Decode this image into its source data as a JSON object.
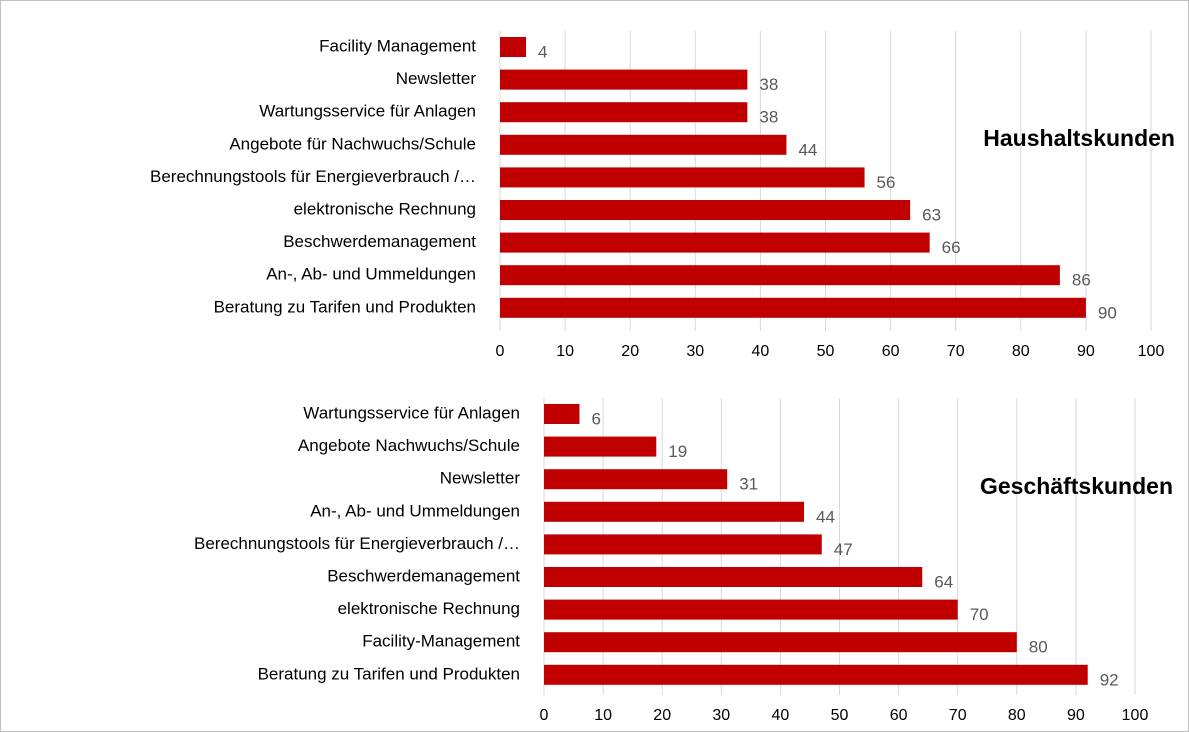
{
  "chart_data": [
    {
      "type": "bar",
      "orientation": "horizontal",
      "annotation": "Haushaltskunden",
      "color": "#c00000",
      "categories": [
        "Facility Management",
        "Newsletter",
        "Wartungsservice für Anlagen",
        "Angebote für Nachwuchs/Schule",
        "Berechnungstools für Energieverbrauch /…",
        "elektronische Rechnung",
        "Beschwerdemanagement",
        "An-, Ab- und Ummeldungen",
        "Beratung zu Tarifen und Produkten"
      ],
      "values": [
        4,
        38,
        38,
        44,
        56,
        63,
        66,
        86,
        90
      ],
      "xlim": [
        0,
        100
      ],
      "xticks": [
        0,
        10,
        20,
        30,
        40,
        50,
        60,
        70,
        80,
        90,
        100
      ],
      "grid": true
    },
    {
      "type": "bar",
      "orientation": "horizontal",
      "annotation": "Geschäftskunden",
      "color": "#c00000",
      "categories": [
        "Wartungsservice für Anlagen",
        "Angebote Nachwuchs/Schule",
        "Newsletter",
        "An-, Ab- und Ummeldungen",
        "Berechnungstools für Energieverbrauch /…",
        "Beschwerdemanagement",
        "elektronische Rechnung",
        "Facility-Management",
        "Beratung zu Tarifen und Produkten"
      ],
      "values": [
        6,
        19,
        31,
        44,
        47,
        64,
        70,
        80,
        92
      ],
      "xlim": [
        0,
        100
      ],
      "xticks": [
        0,
        10,
        20,
        30,
        40,
        50,
        60,
        70,
        80,
        90,
        100
      ],
      "grid": true
    }
  ]
}
